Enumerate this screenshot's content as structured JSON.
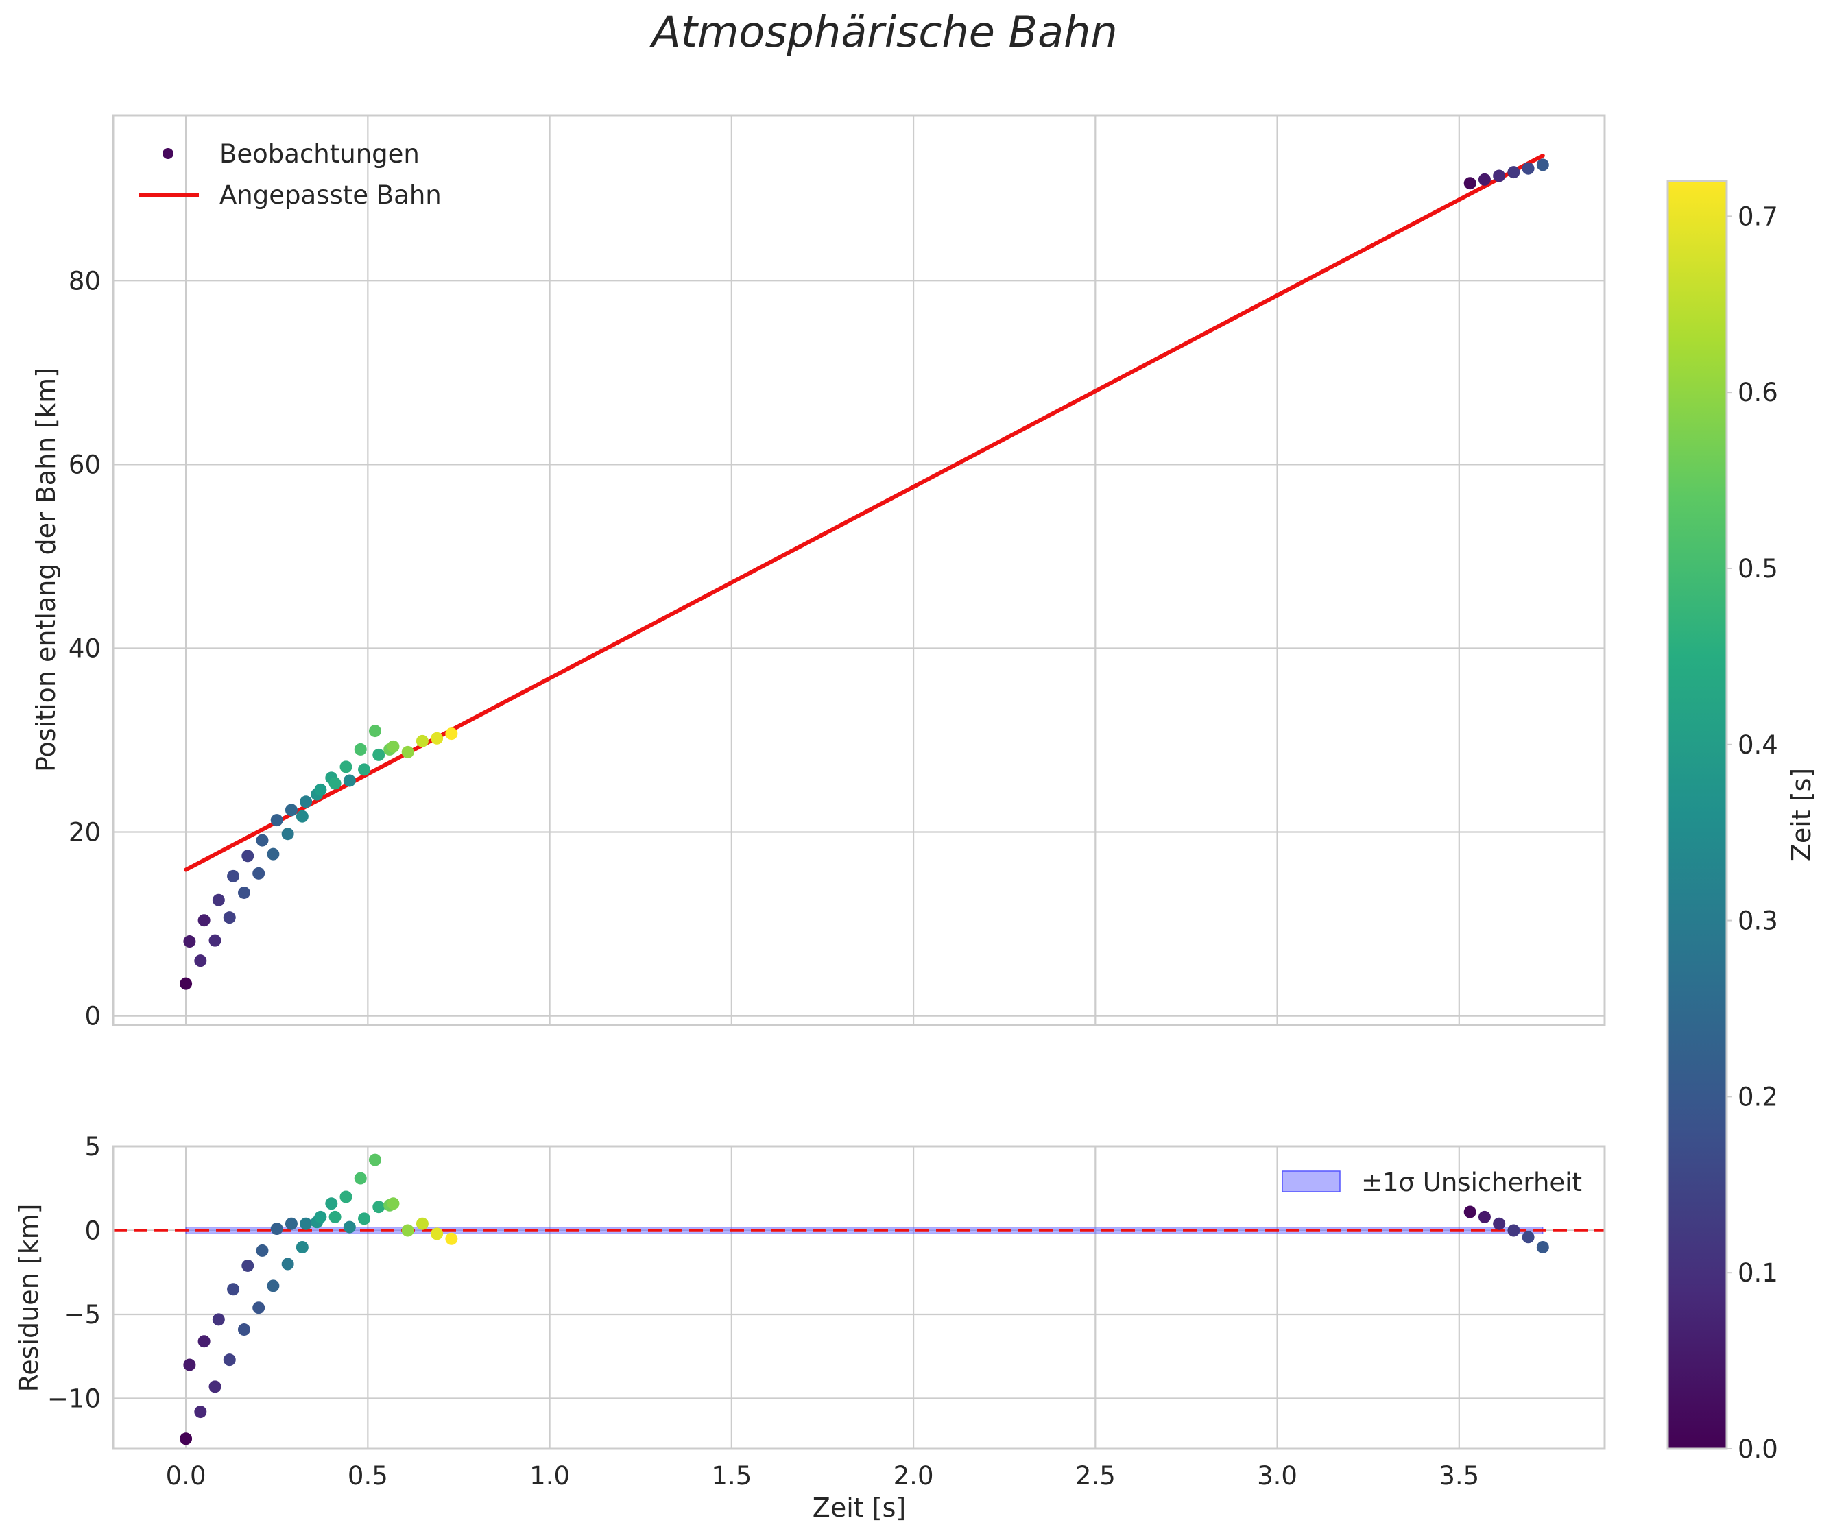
{
  "chart_data": {
    "title": "Atmosphärische Bahn",
    "xlabel": "Zeit [s]",
    "xlim": [
      -0.2,
      3.9
    ],
    "xticks": [
      "0.0",
      "0.5",
      "1.0",
      "1.5",
      "2.0",
      "2.5",
      "3.0",
      "3.5"
    ],
    "top": {
      "type": "scatter",
      "ylabel": "Position entlang der Bahn [km]",
      "ylim": [
        -1,
        98
      ],
      "yticks": [
        "0",
        "20",
        "40",
        "60",
        "80"
      ],
      "legend": {
        "scatter": "Beobachtungen",
        "line": "Angepasste Bahn"
      },
      "observations": {
        "t": [
          0.0,
          0.01,
          0.04,
          0.05,
          0.08,
          0.09,
          0.12,
          0.13,
          0.16,
          0.17,
          0.2,
          0.21,
          0.24,
          0.25,
          0.28,
          0.29,
          0.32,
          0.33,
          0.36,
          0.37,
          0.4,
          0.41,
          0.44,
          0.45,
          0.48,
          0.49,
          0.52,
          0.53,
          0.56,
          0.57,
          0.61,
          0.65,
          0.69,
          0.73,
          3.53,
          3.57,
          3.61,
          3.65,
          3.69,
          3.73
        ],
        "pos": [
          3.5,
          8.1,
          6.0,
          10.4,
          8.2,
          12.6,
          10.7,
          15.2,
          13.4,
          17.4,
          15.5,
          19.1,
          17.6,
          21.3,
          19.8,
          22.4,
          21.7,
          23.3,
          24.1,
          24.6,
          25.9,
          25.3,
          27.1,
          25.6,
          29.0,
          26.8,
          31.0,
          28.4,
          29.0,
          29.3,
          28.7,
          29.9,
          30.2,
          30.7,
          90.6,
          91.0,
          91.4,
          91.8,
          92.2,
          92.6
        ],
        "color": [
          0.0,
          0.05,
          0.08,
          0.06,
          0.09,
          0.11,
          0.14,
          0.16,
          0.18,
          0.14,
          0.19,
          0.21,
          0.23,
          0.22,
          0.29,
          0.24,
          0.34,
          0.31,
          0.37,
          0.4,
          0.42,
          0.44,
          0.45,
          0.34,
          0.51,
          0.44,
          0.53,
          0.45,
          0.56,
          0.58,
          0.6,
          0.66,
          0.69,
          0.72,
          0.01,
          0.05,
          0.09,
          0.12,
          0.16,
          0.2
        ]
      },
      "fit_line": {
        "t": [
          0.0,
          3.73
        ],
        "pos": [
          15.9,
          93.6
        ],
        "color": "#ee1111"
      }
    },
    "bottom": {
      "type": "scatter",
      "ylabel": "Residuen [km]",
      "ylim": [
        -13,
        5
      ],
      "yticks": [
        "5",
        "0",
        "−5",
        "−10"
      ],
      "ytick_values": [
        5,
        0,
        -5,
        -10
      ],
      "legend": {
        "band": "±1σ Unsicherheit"
      },
      "band": {
        "t": [
          0.0,
          3.73
        ],
        "sigma": 0.2,
        "color": "#5555ff"
      },
      "zero_line_color": "#ee1111",
      "residuals": [
        -12.4,
        -8.0,
        -10.8,
        -6.6,
        -9.3,
        -5.3,
        -7.7,
        -3.5,
        -5.9,
        -2.1,
        -4.6,
        -1.2,
        -3.3,
        0.1,
        -2.0,
        0.4,
        -1.0,
        0.4,
        0.5,
        0.8,
        1.6,
        0.8,
        2.0,
        0.2,
        3.1,
        0.7,
        4.2,
        1.4,
        1.5,
        1.6,
        0.0,
        0.4,
        -0.2,
        -0.5,
        1.1,
        0.8,
        0.4,
        0.0,
        -0.4,
        -1.0
      ]
    },
    "colorbar": {
      "label": "Zeit [s]",
      "range": [
        0.0,
        0.72
      ],
      "ticks": [
        "0.0",
        "0.1",
        "0.2",
        "0.3",
        "0.4",
        "0.5",
        "0.6",
        "0.7"
      ],
      "tick_values": [
        0.0,
        0.1,
        0.2,
        0.3,
        0.4,
        0.5,
        0.6,
        0.7
      ],
      "colormap": "viridis"
    }
  }
}
